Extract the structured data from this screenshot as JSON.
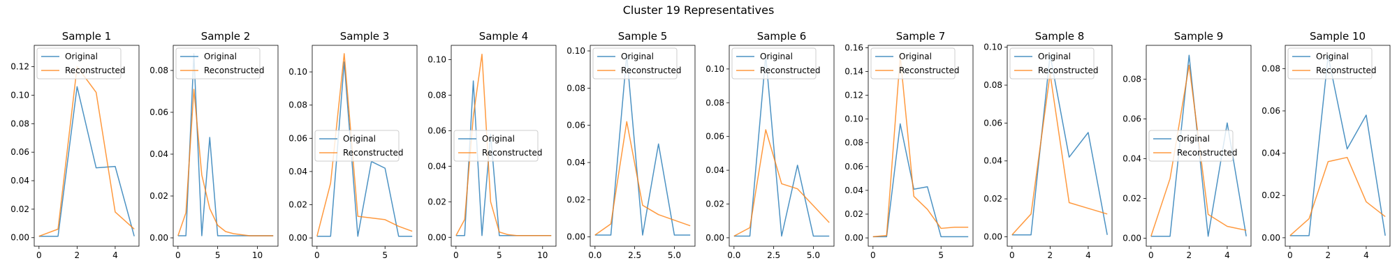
{
  "figure": {
    "title": "Cluster 19 Representatives"
  },
  "colors": {
    "original": "#1f77b4",
    "reconstructed": "#ff7f0e"
  },
  "chart_data": [
    {
      "type": "line",
      "title": "Sample 1",
      "x": [
        0,
        1,
        2,
        3,
        4,
        5
      ],
      "xlim": [
        -0.25,
        5.25
      ],
      "ylim": [
        -0.006,
        0.135
      ],
      "xticks": [
        0,
        2,
        4
      ],
      "xtick_labels": [
        "0",
        "2",
        "4"
      ],
      "yticks": [
        0,
        0.02,
        0.04,
        0.06,
        0.08,
        0.1,
        0.12
      ],
      "ytick_labels": [
        "0.00",
        "0.02",
        "0.04",
        "0.06",
        "0.08",
        "0.10",
        "0.12"
      ],
      "legend_loc": "upper-left",
      "series": [
        {
          "name": "Original",
          "values": [
            0.001,
            0.001,
            0.106,
            0.049,
            0.05,
            0.001
          ]
        },
        {
          "name": "Reconstructed",
          "values": [
            0.001,
            0.006,
            0.12,
            0.102,
            0.018,
            0.006
          ]
        }
      ]
    },
    {
      "type": "line",
      "title": "Sample 2",
      "x": [
        0,
        1,
        2,
        3,
        4,
        5,
        6,
        7,
        8,
        9,
        10,
        11,
        12
      ],
      "xlim": [
        -0.6,
        12.6
      ],
      "ylim": [
        -0.004,
        0.092
      ],
      "xticks": [
        0,
        5,
        10
      ],
      "xtick_labels": [
        "0",
        "5",
        "10"
      ],
      "yticks": [
        0,
        0.02,
        0.04,
        0.06,
        0.08
      ],
      "ytick_labels": [
        "0.00",
        "0.02",
        "0.04",
        "0.06",
        "0.08"
      ],
      "legend_loc": "upper-left",
      "series": [
        {
          "name": "Original",
          "values": [
            0.001,
            0.001,
            0.088,
            0.001,
            0.048,
            0.001,
            0.001,
            0.001,
            0.001,
            0.001,
            0.001,
            0.001,
            0.001
          ]
        },
        {
          "name": "Reconstructed",
          "values": [
            0.001,
            0.012,
            0.071,
            0.03,
            0.014,
            0.006,
            0.003,
            0.002,
            0.0015,
            0.001,
            0.001,
            0.001,
            0.001
          ]
        }
      ]
    },
    {
      "type": "line",
      "title": "Sample 3",
      "x": [
        0,
        1,
        2,
        3,
        4,
        5,
        6,
        7
      ],
      "xlim": [
        -0.35,
        7.35
      ],
      "ylim": [
        -0.005,
        0.116
      ],
      "xticks": [
        0,
        5
      ],
      "xtick_labels": [
        "0",
        "5"
      ],
      "yticks": [
        0,
        0.02,
        0.04,
        0.06,
        0.08,
        0.1
      ],
      "ytick_labels": [
        "0.00",
        "0.02",
        "0.04",
        "0.06",
        "0.08",
        "0.10"
      ],
      "legend_loc": "center-left",
      "series": [
        {
          "name": "Original",
          "values": [
            0.001,
            0.001,
            0.106,
            0.001,
            0.046,
            0.042,
            0.001,
            0.001
          ]
        },
        {
          "name": "Reconstructed",
          "values": [
            0.001,
            0.033,
            0.111,
            0.013,
            0.012,
            0.011,
            0.007,
            0.004
          ]
        }
      ]
    },
    {
      "type": "line",
      "title": "Sample 4",
      "x": [
        0,
        1,
        2,
        3,
        4,
        5,
        6,
        7,
        8,
        9,
        10,
        11
      ],
      "xlim": [
        -0.55,
        11.55
      ],
      "ylim": [
        -0.005,
        0.108
      ],
      "xticks": [
        0,
        5,
        10
      ],
      "xtick_labels": [
        "0",
        "5",
        "10"
      ],
      "yticks": [
        0,
        0.02,
        0.04,
        0.06,
        0.08,
        0.1
      ],
      "ytick_labels": [
        "0.00",
        "0.02",
        "0.04",
        "0.06",
        "0.08",
        "0.10"
      ],
      "legend_loc": "center-left",
      "series": [
        {
          "name": "Original",
          "values": [
            0.001,
            0.001,
            0.088,
            0.001,
            0.058,
            0.001,
            0.001,
            0.001,
            0.001,
            0.001,
            0.001,
            0.001
          ]
        },
        {
          "name": "Reconstructed",
          "values": [
            0.001,
            0.01,
            0.068,
            0.103,
            0.02,
            0.003,
            0.0015,
            0.001,
            0.001,
            0.001,
            0.001,
            0.001
          ]
        }
      ]
    },
    {
      "type": "line",
      "title": "Sample 5",
      "x": [
        0,
        1,
        2,
        3,
        4,
        5,
        6
      ],
      "xlim": [
        -0.3,
        6.3
      ],
      "ylim": [
        -0.005,
        0.103
      ],
      "xticks": [
        0,
        2.5,
        5
      ],
      "xtick_labels": [
        "0.0",
        "2.5",
        "5.0"
      ],
      "yticks": [
        0,
        0.02,
        0.04,
        0.06,
        0.08,
        0.1
      ],
      "ytick_labels": [
        "0.00",
        "0.02",
        "0.04",
        "0.06",
        "0.08",
        "0.10"
      ],
      "legend_loc": "upper-left",
      "series": [
        {
          "name": "Original",
          "values": [
            0.001,
            0.001,
            0.098,
            0.001,
            0.05,
            0.001,
            0.001
          ]
        },
        {
          "name": "Reconstructed",
          "values": [
            0.001,
            0.007,
            0.062,
            0.017,
            0.012,
            0.009,
            0.006
          ]
        }
      ]
    },
    {
      "type": "line",
      "title": "Sample 6",
      "x": [
        0,
        1,
        2,
        3,
        4,
        5,
        6
      ],
      "xlim": [
        -0.3,
        6.3
      ],
      "ylim": [
        -0.005,
        0.114
      ],
      "xticks": [
        0,
        2.5,
        5
      ],
      "xtick_labels": [
        "0.0",
        "2.5",
        "5.0"
      ],
      "yticks": [
        0,
        0.02,
        0.04,
        0.06,
        0.08,
        0.1
      ],
      "ytick_labels": [
        "0.00",
        "0.02",
        "0.04",
        "0.06",
        "0.08",
        "0.10"
      ],
      "legend_loc": "upper-left",
      "series": [
        {
          "name": "Original",
          "values": [
            0.001,
            0.001,
            0.108,
            0.001,
            0.043,
            0.001,
            0.001
          ]
        },
        {
          "name": "Reconstructed",
          "values": [
            0.001,
            0.006,
            0.064,
            0.032,
            0.029,
            0.019,
            0.009
          ]
        }
      ]
    },
    {
      "type": "line",
      "title": "Sample 7",
      "x": [
        0,
        1,
        2,
        3,
        4,
        5,
        6,
        7
      ],
      "xlim": [
        -0.35,
        7.35
      ],
      "ylim": [
        -0.007,
        0.162
      ],
      "xticks": [
        0,
        5
      ],
      "xtick_labels": [
        "0",
        "5"
      ],
      "yticks": [
        0,
        0.02,
        0.04,
        0.06,
        0.08,
        0.1,
        0.12,
        0.14,
        0.16
      ],
      "ytick_labels": [
        "0.00",
        "0.02",
        "0.04",
        "0.06",
        "0.08",
        "0.10",
        "0.12",
        "0.14",
        "0.16"
      ],
      "legend_loc": "upper-left",
      "series": [
        {
          "name": "Original",
          "values": [
            0.001,
            0.001,
            0.096,
            0.041,
            0.043,
            0.001,
            0.001,
            0.001
          ]
        },
        {
          "name": "Reconstructed",
          "values": [
            0.001,
            0.002,
            0.153,
            0.035,
            0.024,
            0.008,
            0.009,
            0.009
          ]
        }
      ]
    },
    {
      "type": "line",
      "title": "Sample 8",
      "x": [
        0,
        1,
        2,
        3,
        4,
        5
      ],
      "xlim": [
        -0.25,
        5.25
      ],
      "ylim": [
        -0.005,
        0.101
      ],
      "xticks": [
        0,
        2,
        4
      ],
      "xtick_labels": [
        "0",
        "2",
        "4"
      ],
      "yticks": [
        0,
        0.02,
        0.04,
        0.06,
        0.08,
        0.1
      ],
      "ytick_labels": [
        "0.00",
        "0.02",
        "0.04",
        "0.06",
        "0.08",
        "0.10"
      ],
      "legend_loc": "upper-left",
      "series": [
        {
          "name": "Original",
          "values": [
            0.001,
            0.001,
            0.096,
            0.042,
            0.055,
            0.001
          ]
        },
        {
          "name": "Reconstructed",
          "values": [
            0.001,
            0.012,
            0.086,
            0.018,
            0.015,
            0.012
          ]
        }
      ]
    },
    {
      "type": "line",
      "title": "Sample 9",
      "x": [
        0,
        1,
        2,
        3,
        4,
        5
      ],
      "xlim": [
        -0.25,
        5.25
      ],
      "ylim": [
        -0.004,
        0.097
      ],
      "xticks": [
        0,
        2,
        4
      ],
      "xtick_labels": [
        "0",
        "2",
        "4"
      ],
      "yticks": [
        0,
        0.02,
        0.04,
        0.06,
        0.08
      ],
      "ytick_labels": [
        "0.00",
        "0.02",
        "0.04",
        "0.06",
        "0.08"
      ],
      "legend_loc": "center-left",
      "series": [
        {
          "name": "Original",
          "values": [
            0.001,
            0.001,
            0.092,
            0.001,
            0.058,
            0.001
          ]
        },
        {
          "name": "Reconstructed",
          "values": [
            0.001,
            0.03,
            0.087,
            0.012,
            0.006,
            0.004
          ]
        }
      ]
    },
    {
      "type": "line",
      "title": "Sample 10",
      "x": [
        0,
        1,
        2,
        3,
        4,
        5
      ],
      "xlim": [
        -0.25,
        5.25
      ],
      "ylim": [
        -0.004,
        0.091
      ],
      "xticks": [
        0,
        2,
        4
      ],
      "xtick_labels": [
        "0",
        "2",
        "4"
      ],
      "yticks": [
        0,
        0.02,
        0.04,
        0.06,
        0.08
      ],
      "ytick_labels": [
        "0.00",
        "0.02",
        "0.04",
        "0.06",
        "0.08"
      ],
      "legend_loc": "upper-left",
      "series": [
        {
          "name": "Original",
          "values": [
            0.001,
            0.001,
            0.086,
            0.042,
            0.058,
            0.001
          ]
        },
        {
          "name": "Reconstructed",
          "values": [
            0.001,
            0.009,
            0.036,
            0.038,
            0.017,
            0.01
          ]
        }
      ]
    }
  ]
}
